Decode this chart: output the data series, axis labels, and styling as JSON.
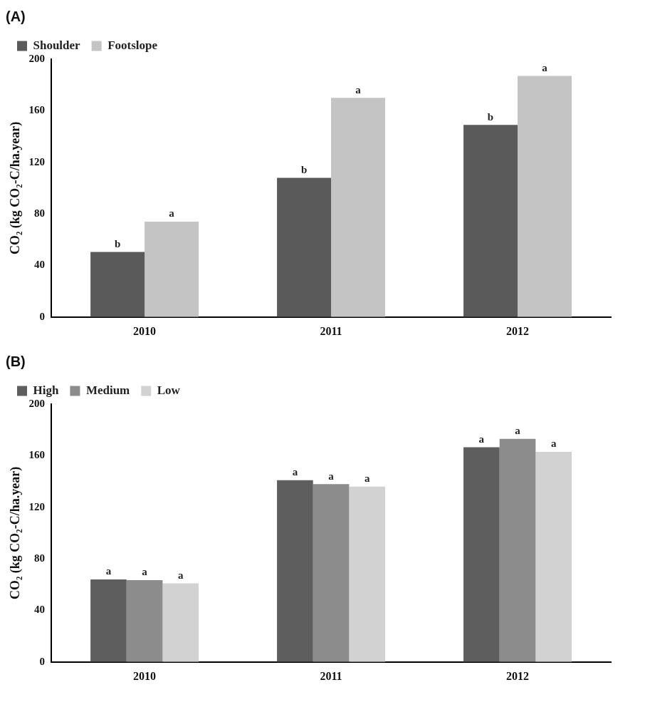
{
  "chart_data": [
    {
      "type": "bar",
      "title": "(A)",
      "ylabel": "CO₂ (kg CO₂-C/ha.year)",
      "categories": [
        "2010",
        "2011",
        "2012"
      ],
      "ylim": [
        0,
        200
      ],
      "yticks": [
        0,
        40,
        80,
        120,
        160,
        200
      ],
      "legend": "top left",
      "series": [
        {
          "name": "Shoulder",
          "color": "#5a5a5a",
          "values": [
            50.5,
            108,
            149
          ],
          "value_labels": [
            "b",
            "b",
            "b"
          ]
        },
        {
          "name": "Footslope",
          "color": "#c4c4c4",
          "values": [
            74,
            170,
            187
          ],
          "value_labels": [
            "a",
            "a",
            "a"
          ]
        }
      ]
    },
    {
      "type": "bar",
      "title": "(B)",
      "ylabel": "CO₂ (kg CO₂-C/ha.year)",
      "categories": [
        "2010",
        "2011",
        "2012"
      ],
      "ylim": [
        0,
        200
      ],
      "yticks": [
        0,
        40,
        80,
        120,
        160,
        200
      ],
      "legend": "top left",
      "series": [
        {
          "name": "High",
          "color": "#5e5e5e",
          "values": [
            64,
            141,
            166.5
          ],
          "value_labels": [
            "a",
            "a",
            "a"
          ]
        },
        {
          "name": "Medium",
          "color": "#8c8c8c",
          "values": [
            63.5,
            138,
            173
          ],
          "value_labels": [
            "a",
            "a",
            "a"
          ]
        },
        {
          "name": "Low",
          "color": "#d2d2d2",
          "values": [
            61,
            136,
            163
          ],
          "value_labels": [
            "a",
            "a",
            "a"
          ]
        }
      ]
    }
  ]
}
